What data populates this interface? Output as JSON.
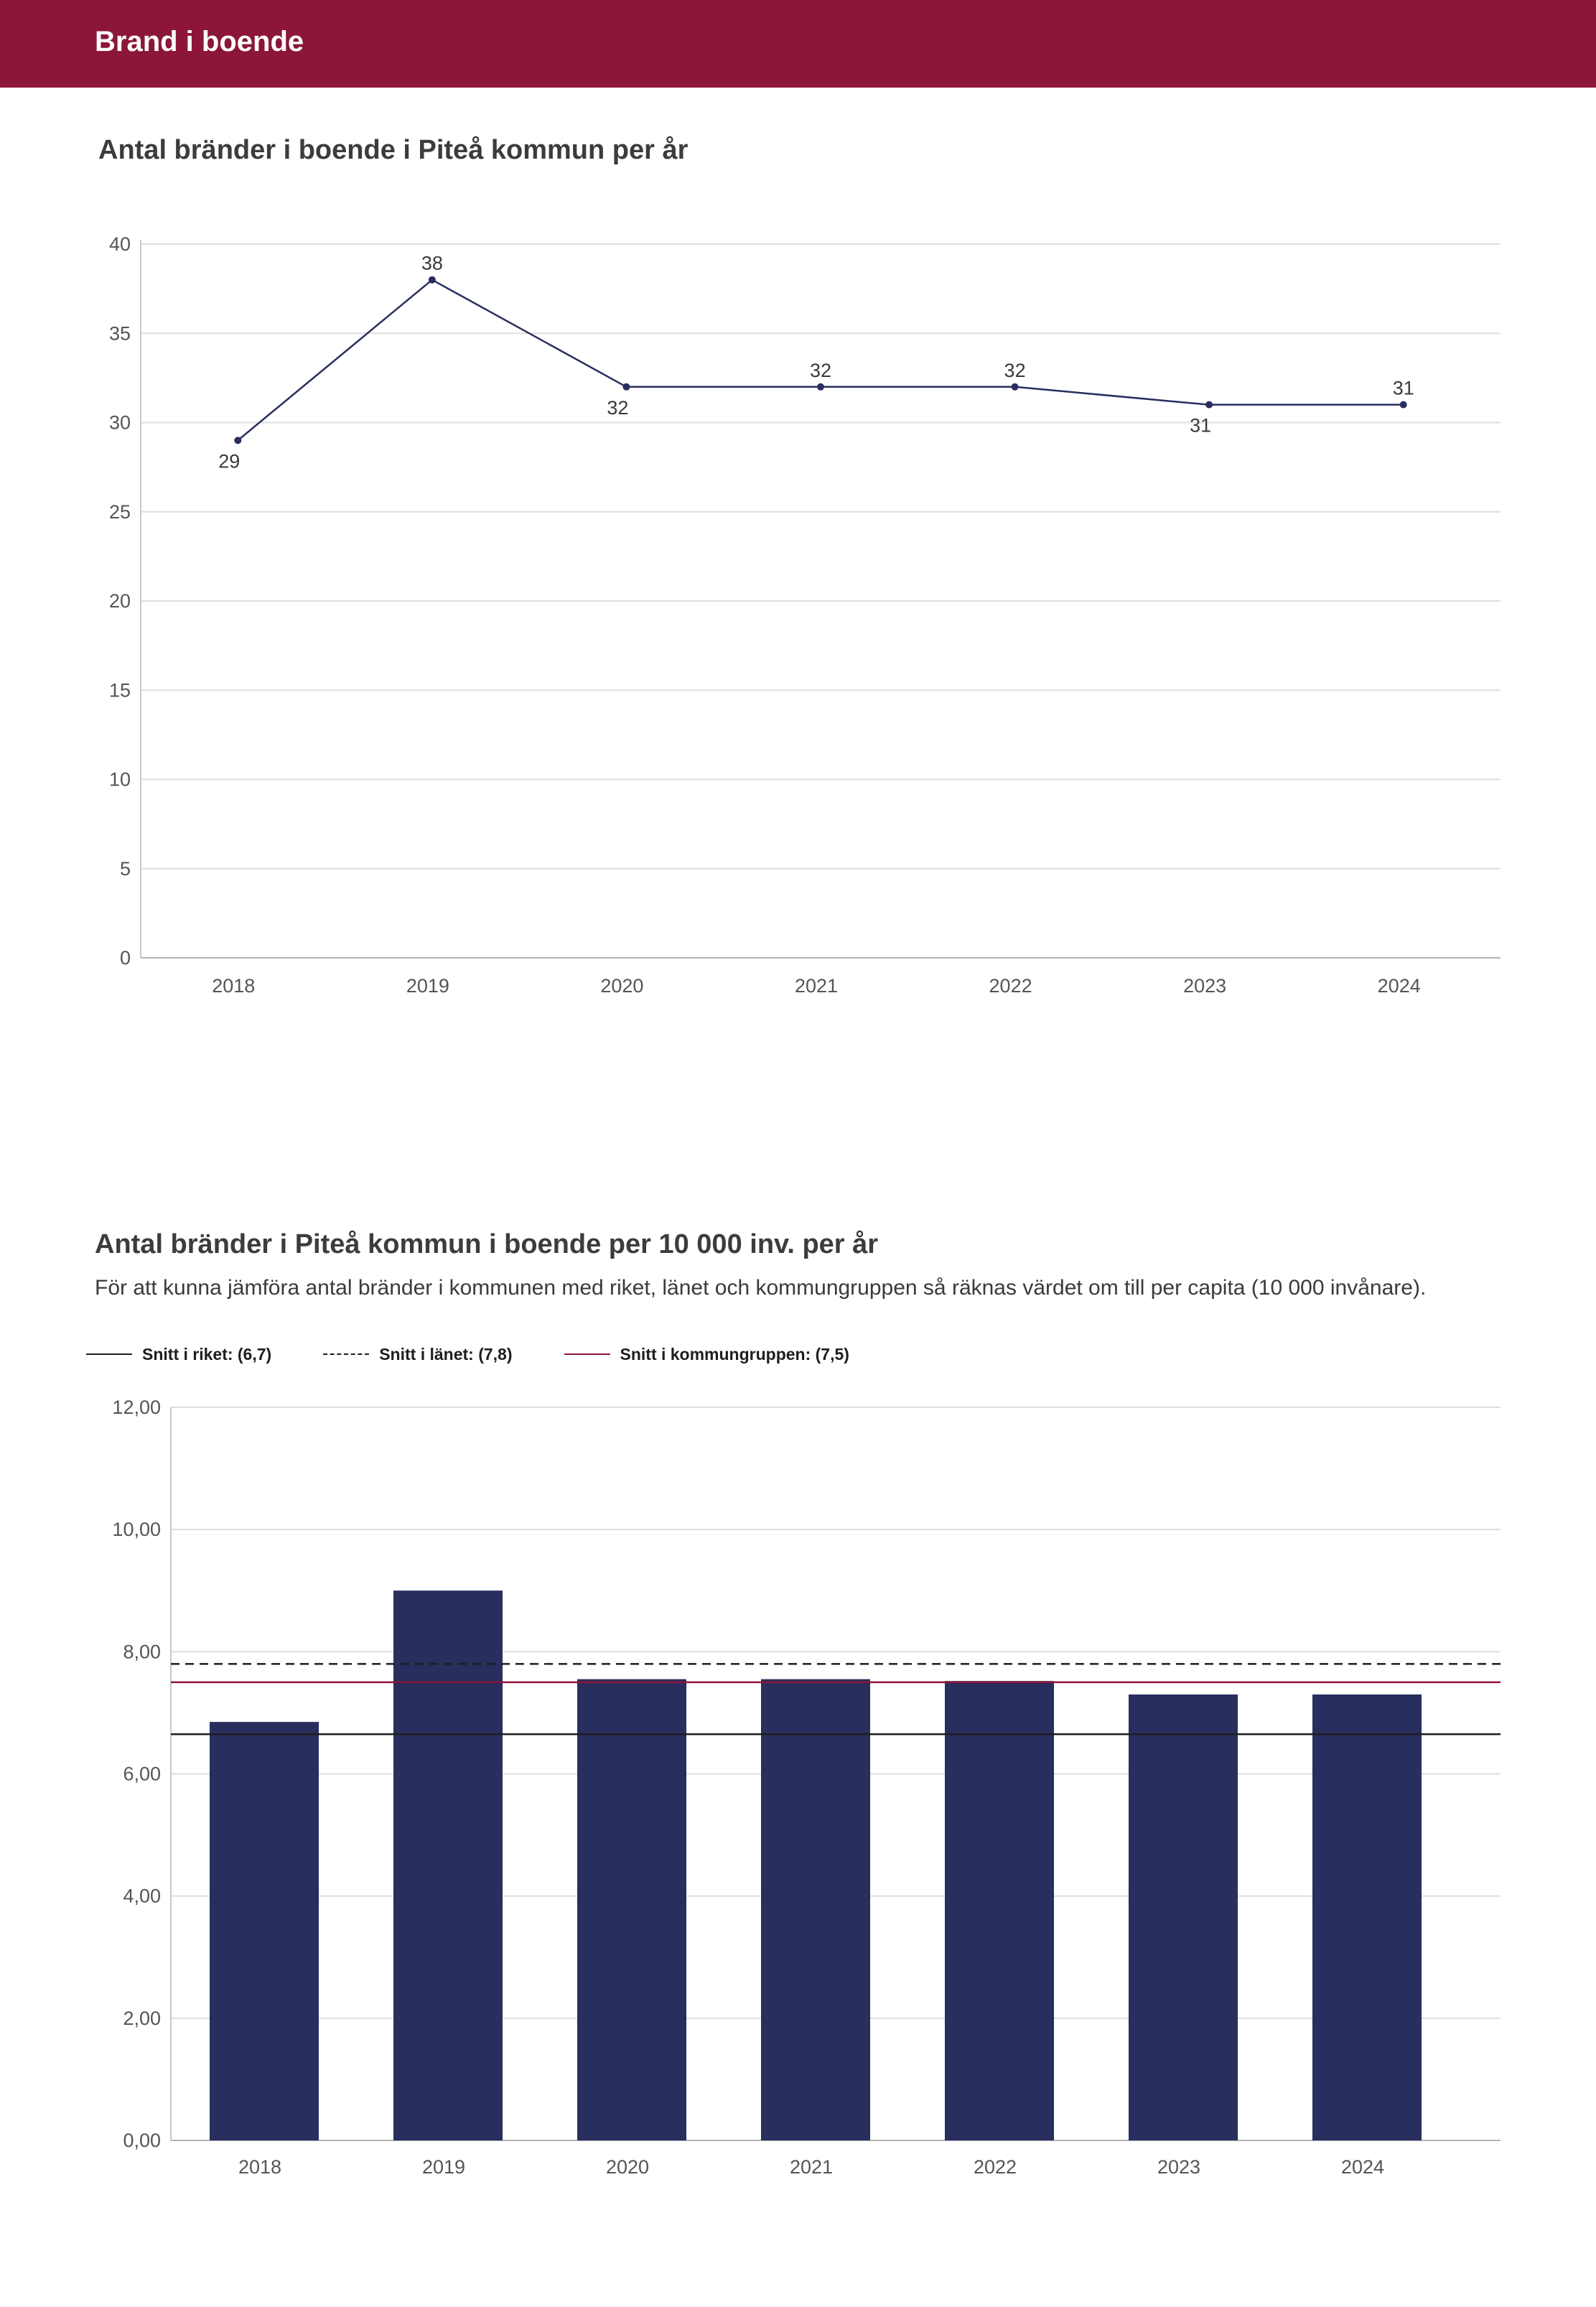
{
  "header": {
    "title": "Brand i boende"
  },
  "colors": {
    "header_bg": "#8c1639",
    "series": "#282e5e",
    "grid": "#dedede",
    "riket": "#1e1e1e",
    "lanet": "#1e1e1e",
    "kommungrupp": "#8c1639"
  },
  "chart_data": [
    {
      "type": "line",
      "title": "Antal bränder i boende i Piteå kommun per år",
      "categories": [
        "2018",
        "2019",
        "2020",
        "2021",
        "2022",
        "2023",
        "2024"
      ],
      "values": [
        29,
        38,
        32,
        32,
        32,
        31,
        31
      ],
      "label_positions": [
        "below",
        "above",
        "below",
        "above",
        "above",
        "below",
        "above"
      ],
      "ylim": [
        0,
        40
      ],
      "yticks": [
        0,
        5,
        10,
        15,
        20,
        25,
        30,
        35,
        40
      ],
      "ytick_labels": [
        "0",
        "5",
        "10",
        "15",
        "20",
        "25",
        "30",
        "35",
        "40"
      ],
      "grid": true,
      "xlabel": "",
      "ylabel": ""
    },
    {
      "type": "bar",
      "title": "Antal bränder i Piteå kommun i boende per 10 000 inv. per år",
      "description": "För att kunna jämföra antal bränder i kommunen med riket, länet och kommungruppen så räknas värdet om till per capita (10 000 invånare).",
      "categories": [
        "2018",
        "2019",
        "2020",
        "2021",
        "2022",
        "2023",
        "2024"
      ],
      "values": [
        6.85,
        9.0,
        7.55,
        7.55,
        7.52,
        7.3,
        7.3
      ],
      "ylim": [
        0,
        12
      ],
      "yticks": [
        0,
        2,
        4,
        6,
        8,
        10,
        12
      ],
      "ytick_labels": [
        "0,00",
        "2,00",
        "4,00",
        "6,00",
        "8,00",
        "10,00",
        "12,00"
      ],
      "grid": true,
      "legend_position": "top-left",
      "reference_lines": [
        {
          "name": "Snitt i riket: (6,7)",
          "value": 6.65,
          "style": "solid",
          "color_key": "riket"
        },
        {
          "name": "Snitt i länet: (7,8)",
          "value": 7.8,
          "style": "dashed",
          "color_key": "lanet"
        },
        {
          "name": "Snitt i kommungruppen: (7,5)",
          "value": 7.5,
          "style": "solid",
          "color_key": "kommungrupp"
        }
      ],
      "xlabel": "",
      "ylabel": ""
    }
  ]
}
